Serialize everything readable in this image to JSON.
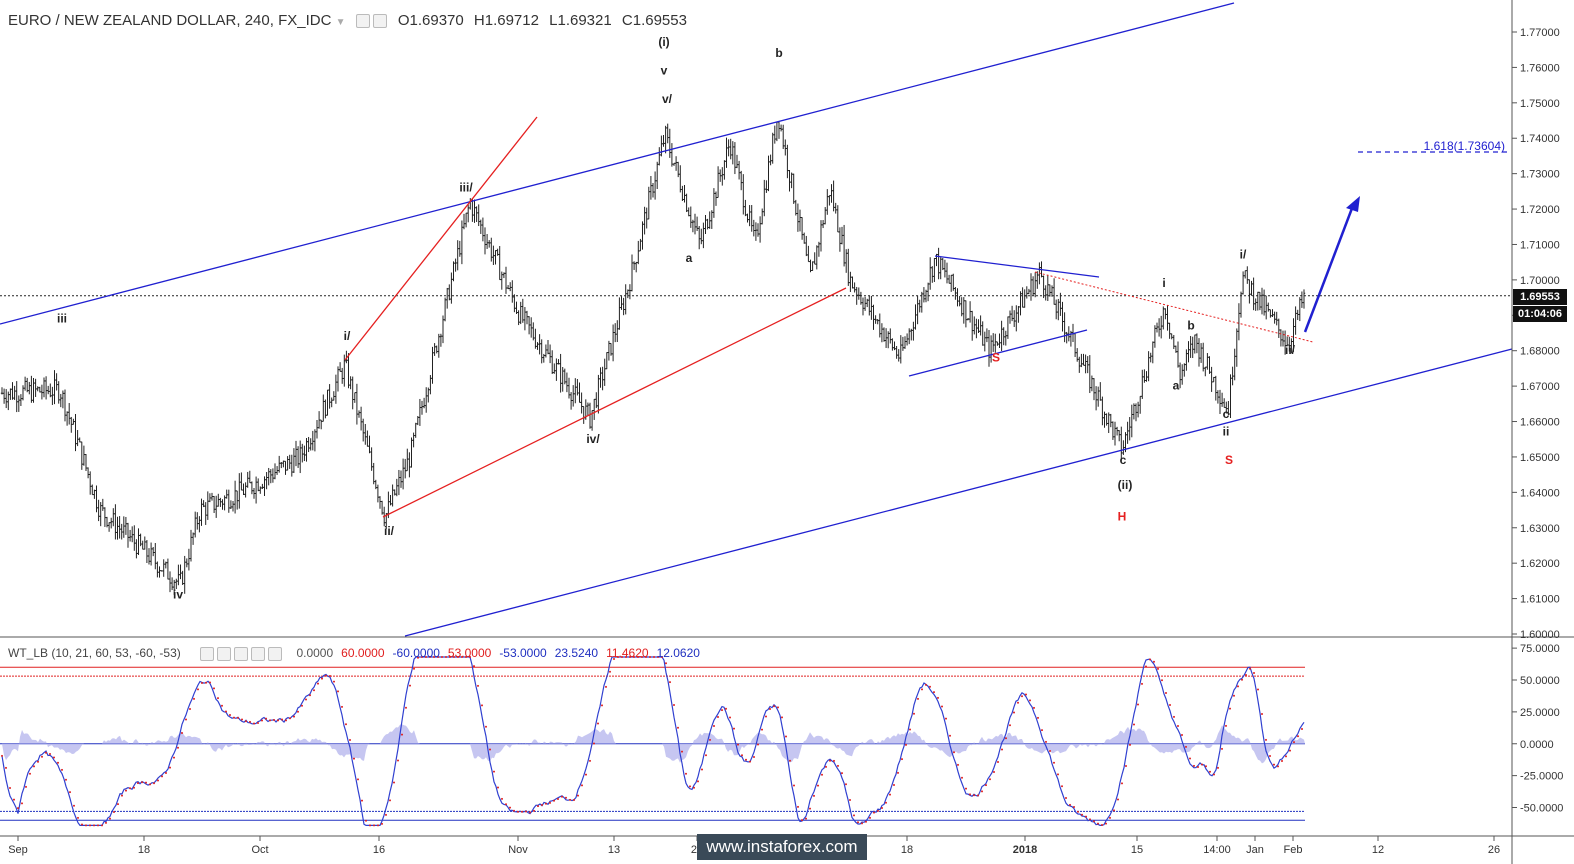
{
  "header": {
    "symbol": "EURO / NEW ZEALAND DOLLAR, 240, FX_IDC",
    "open": "O1.69370",
    "high": "H1.69712",
    "low": "L1.69321",
    "close": "C1.69553"
  },
  "indicator": {
    "name": "WT_LB (10, 21, 60, 53, -60, -53)",
    "values": [
      "0.0000",
      "60.0000",
      "-60.0000",
      "53.0000",
      "-53.0000",
      "23.5240",
      "11.4620",
      "12.0620"
    ],
    "value_colors": [
      "#555555",
      "#e02020",
      "#2030c0",
      "#e02020",
      "#2030c0",
      "#2030c0",
      "#e02020",
      "#2030c0"
    ]
  },
  "price_tag": "1.69553",
  "time_tag": "01:04:06",
  "watermark": "www.instaforex.com",
  "colors": {
    "channel": "#2020d0",
    "red_line": "#e52020",
    "bar": "#222222",
    "osc_fill": "#b8b8ee"
  },
  "chart_data": [
    {
      "type": "ohlc",
      "title": "EURO / NEW ZEALAND DOLLAR, 240, FX_IDC",
      "price_axis": {
        "min": 1.6,
        "max": 1.77,
        "ticks": [
          "1.77000",
          "1.76000",
          "1.75000",
          "1.74000",
          "1.73000",
          "1.72000",
          "1.71000",
          "1.70000",
          "1.69000",
          "1.68000",
          "1.67000",
          "1.66000",
          "1.65000",
          "1.64000",
          "1.63000",
          "1.62000",
          "1.61000",
          "1.60000"
        ]
      },
      "time_axis": {
        "labels": [
          "Sep",
          "18",
          "Oct",
          "16",
          "Nov",
          "13",
          "27",
          "Dec",
          "18",
          "2018",
          "15",
          "Jan",
          "14:00",
          "Feb",
          "12",
          "26"
        ]
      },
      "price_path": [
        [
          0,
          1.668
        ],
        [
          60,
          1.669
        ],
        [
          100,
          1.635
        ],
        [
          180,
          1.614
        ],
        [
          200,
          1.635
        ],
        [
          240,
          1.64
        ],
        [
          300,
          1.65
        ],
        [
          345,
          1.676
        ],
        [
          385,
          1.633
        ],
        [
          410,
          1.65
        ],
        [
          470,
          1.722
        ],
        [
          520,
          1.69
        ],
        [
          590,
          1.661
        ],
        [
          630,
          1.7
        ],
        [
          665,
          1.741
        ],
        [
          700,
          1.71
        ],
        [
          730,
          1.739
        ],
        [
          755,
          1.71
        ],
        [
          778,
          1.747
        ],
        [
          810,
          1.7
        ],
        [
          830,
          1.726
        ],
        [
          850,
          1.7
        ],
        [
          900,
          1.678
        ],
        [
          935,
          1.706
        ],
        [
          990,
          1.68
        ],
        [
          1040,
          1.702
        ],
        [
          1070,
          1.684
        ],
        [
          1122,
          1.652
        ],
        [
          1165,
          1.693
        ],
        [
          1180,
          1.673
        ],
        [
          1195,
          1.683
        ],
        [
          1228,
          1.663
        ],
        [
          1242,
          1.701
        ],
        [
          1288,
          1.682
        ],
        [
          1305,
          1.696
        ]
      ],
      "last_price": 1.69553,
      "target": {
        "label": "1.618(1.73604)",
        "value": 1.73604
      },
      "wave_labels": [
        {
          "text": "iii",
          "price": 1.688,
          "color": "#222222"
        },
        {
          "text": "iv",
          "price": 1.61,
          "color": "#222222"
        },
        {
          "text": "i/",
          "price": 1.683,
          "color": "#222222"
        },
        {
          "text": "ii/",
          "price": 1.628,
          "color": "#222222"
        },
        {
          "text": "iii/",
          "price": 1.725,
          "color": "#222222"
        },
        {
          "text": "iv/",
          "price": 1.654,
          "color": "#222222"
        },
        {
          "text": "(i)",
          "price": 1.766,
          "color": "#222222"
        },
        {
          "text": "v",
          "price": 1.758,
          "color": "#222222"
        },
        {
          "text": "v/",
          "price": 1.75,
          "color": "#222222"
        },
        {
          "text": "a",
          "price": 1.705,
          "color": "#222222"
        },
        {
          "text": "b",
          "price": 1.763,
          "color": "#222222"
        },
        {
          "text": "S",
          "price": 1.677,
          "color": "#e52020"
        },
        {
          "text": "i",
          "price": 1.698,
          "color": "#222222"
        },
        {
          "text": "b",
          "price": 1.686,
          "color": "#222222"
        },
        {
          "text": "a",
          "price": 1.669,
          "color": "#222222"
        },
        {
          "text": "c",
          "price": 1.661,
          "color": "#222222"
        },
        {
          "text": "ii",
          "price": 1.656,
          "color": "#222222"
        },
        {
          "text": "c",
          "price": 1.648,
          "color": "#222222"
        },
        {
          "text": "(ii)",
          "price": 1.641,
          "color": "#222222"
        },
        {
          "text": "H",
          "price": 1.632,
          "color": "#e52020"
        },
        {
          "text": "S",
          "price": 1.648,
          "color": "#e52020"
        },
        {
          "text": "i/",
          "price": 1.706,
          "color": "#222222"
        },
        {
          "text": "ii/",
          "price": 1.679,
          "color": "#222222"
        }
      ]
    },
    {
      "type": "line",
      "title": "WT_LB (10, 21, 60, 53, -60, -53)",
      "y_axis": {
        "min": -80,
        "max": 80,
        "ticks": [
          "75.0000",
          "50.0000",
          "25.0000",
          "0.0000",
          "-25.0000",
          "-50.0000"
        ]
      },
      "levels": [
        60,
        53,
        -53,
        -60
      ],
      "series": [
        {
          "name": "wt1",
          "color": "#3040d0"
        },
        {
          "name": "wt2",
          "color": "#e02020"
        }
      ]
    }
  ]
}
